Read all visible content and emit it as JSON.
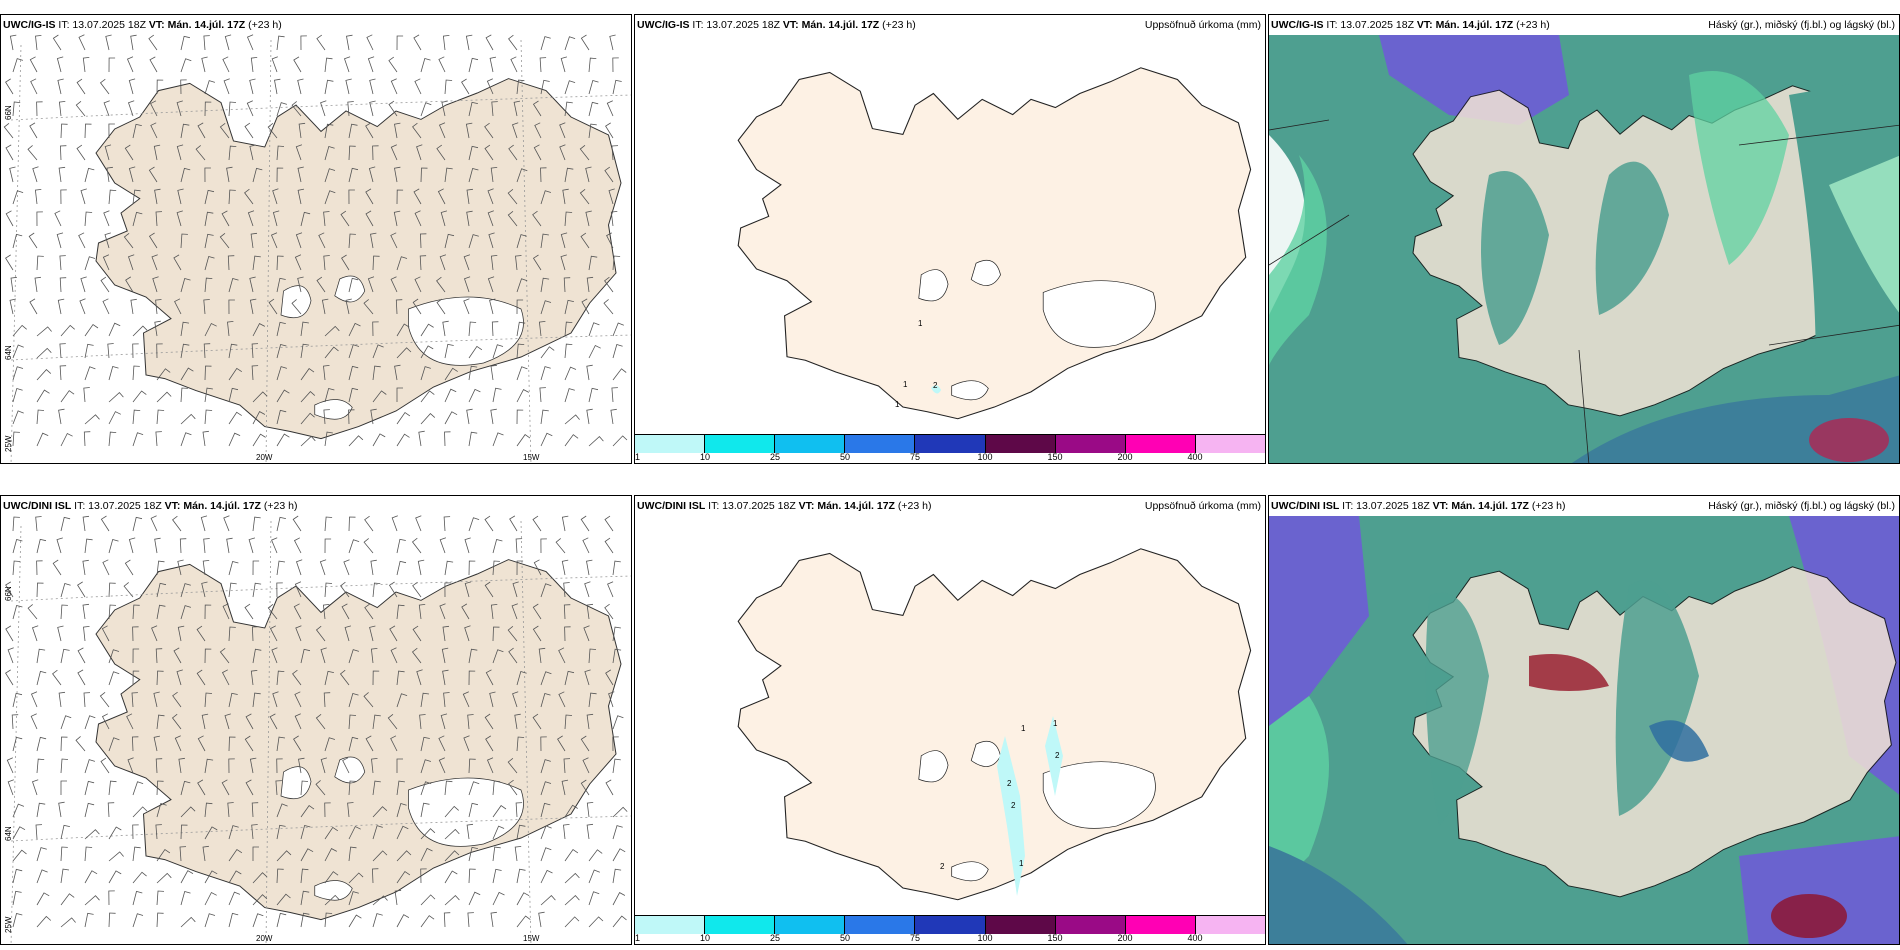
{
  "rows": [
    {
      "model": "UWC/IG-IS",
      "it": "IT: 13.07.2025 18Z",
      "vt": "VT: Mán. 14.júl. 17Z",
      "lead": "(+23 h)",
      "contour_labels": [
        "1",
        "1",
        "1",
        "2"
      ]
    },
    {
      "model": "UWC/DINI ISL",
      "it": "IT: 13.07.2025 18Z",
      "vt": "VT: Mán. 14.júl. 17Z",
      "lead": "(+23 h)",
      "contour_labels": [
        "1",
        "1",
        "2",
        "2",
        "2",
        "1",
        "2"
      ]
    }
  ],
  "precip_title": "Uppsöfnuð úrkoma (mm)",
  "cloud_title": "Háský (gr.), miðský (fj.bl.) og lágský (bl.)",
  "colorbar": {
    "ticks": [
      "1",
      "10",
      "25",
      "50",
      "75",
      "100",
      "150",
      "200",
      "400"
    ],
    "colors": [
      "#bff8f8",
      "#10e8ec",
      "#10bff0",
      "#2a78e8",
      "#2038b8",
      "#5e0848",
      "#9a0a86",
      "#ff00b4",
      "#f6b4f2"
    ]
  },
  "wind_map": {
    "lat_labels": [
      "66N",
      "64N",
      "25W",
      "66N",
      "64N"
    ],
    "lon_labels": [
      "20W",
      "15W"
    ]
  },
  "colors": {
    "land_wind": "#efe3d3",
    "land_precip": "#fdf1e4",
    "cloud_low": "#4e9f90",
    "cloud_mid": "#5fd2a2",
    "cloud_high": "#6a63cf"
  }
}
